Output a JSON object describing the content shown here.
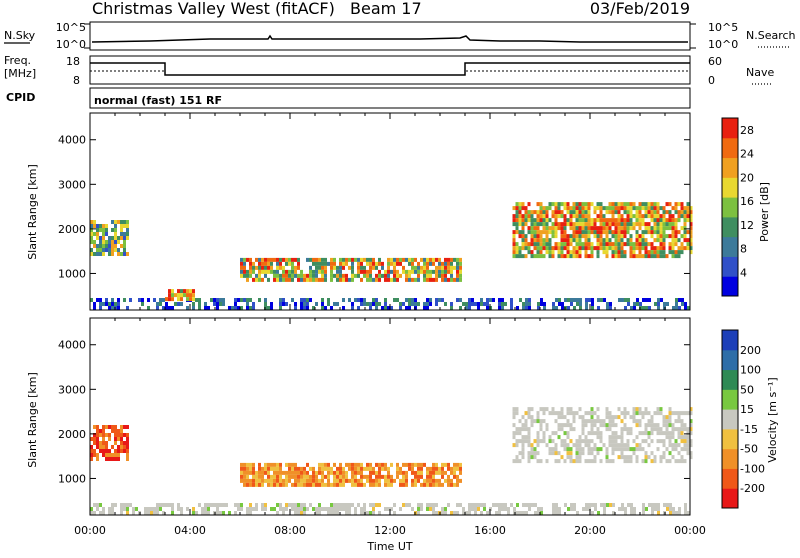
{
  "header": {
    "station": "Christmas Valley West (fitACF)",
    "beam": "Beam 17",
    "date": "03/Feb/2019"
  },
  "strip": {
    "nsky_label": "N.Sky",
    "nsky_ticks": [
      "10^5",
      "10^0"
    ],
    "nsearch_label": "N.Search",
    "nsearch_ticks": [
      "10^5",
      "10^0"
    ],
    "freq_label": "Freq.",
    "freq_unit": "[MHz]",
    "freq_ticks": [
      "18",
      "8"
    ],
    "nave_label": "Nave",
    "nave_ticks": [
      "60",
      "0"
    ],
    "cpid_label": "CPID",
    "cpid_text": "normal (fast) 151 RF"
  },
  "xaxis": {
    "ticks": [
      "00:00",
      "04:00",
      "08:00",
      "12:00",
      "16:00",
      "20:00",
      "00:00"
    ],
    "label": "Time UT"
  },
  "chart_data": [
    {
      "type": "heatmap",
      "panel": "power",
      "xlabel": "Time UT",
      "ylabel": "Slant Range [km]",
      "x_range_hours": [
        0,
        24
      ],
      "ylim": [
        180,
        4600
      ],
      "y_ticks": [
        1000,
        2000,
        3000,
        4000
      ],
      "colorbar": {
        "label": "Power [dB]",
        "ticks": [
          4,
          8,
          12,
          16,
          20,
          24,
          28
        ],
        "range": [
          0,
          30
        ],
        "colors": [
          "#0000e0",
          "#3050c8",
          "#3c7a9a",
          "#3f8e60",
          "#7cc040",
          "#e8d830",
          "#f0a020",
          "#f06a10",
          "#e82010"
        ]
      },
      "regions": [
        {
          "t": [
            0.0,
            1.5
          ],
          "r": [
            1400,
            2200
          ],
          "level": "mixed"
        },
        {
          "t": [
            0.0,
            24.0
          ],
          "r": [
            200,
            450
          ],
          "level": "low"
        },
        {
          "t": [
            3.0,
            4.2
          ],
          "r": [
            400,
            650
          ],
          "level": "high"
        },
        {
          "t": [
            6.0,
            14.8
          ],
          "r": [
            900,
            1350
          ],
          "level": "mixed-high"
        },
        {
          "t": [
            16.9,
            24.0
          ],
          "r": [
            1400,
            2600
          ],
          "level": "high"
        }
      ]
    },
    {
      "type": "heatmap",
      "panel": "velocity",
      "xlabel": "Time UT",
      "ylabel": "Slant Range [km]",
      "x_range_hours": [
        0,
        24
      ],
      "ylim": [
        180,
        4600
      ],
      "y_ticks": [
        1000,
        2000,
        3000,
        4000
      ],
      "colorbar": {
        "label": "Velocity [m s⁻¹]",
        "ticks": [
          200,
          100,
          50,
          15,
          -15,
          -50,
          -100,
          -200
        ],
        "colors": [
          "#1c3fb8",
          "#2e6ea8",
          "#2f8a55",
          "#78c840",
          "#c8c8c0",
          "#f0c040",
          "#f09028",
          "#f05818",
          "#e81818"
        ]
      },
      "regions": [
        {
          "t": [
            0.0,
            1.5
          ],
          "r": [
            1400,
            2200
          ],
          "level": "negative-large"
        },
        {
          "t": [
            0.0,
            24.0
          ],
          "r": [
            200,
            450
          ],
          "level": "near-zero"
        },
        {
          "t": [
            6.0,
            14.8
          ],
          "r": [
            900,
            1350
          ],
          "level": "negative"
        },
        {
          "t": [
            16.9,
            24.0
          ],
          "r": [
            1400,
            2600
          ],
          "level": "near-zero"
        }
      ]
    }
  ]
}
